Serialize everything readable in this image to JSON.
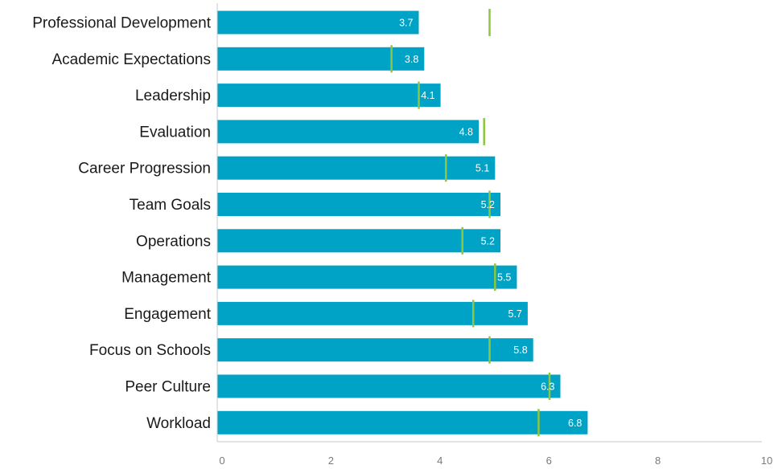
{
  "colors": {
    "bar": "#00a3c6",
    "benchmark": "#8dc63f",
    "axis": "#c9c9c9",
    "label_text": "#1a1a1a",
    "tick_text": "#7a7a7a",
    "value_text": "#ffffff"
  },
  "chart_data": {
    "type": "bar",
    "orientation": "horizontal",
    "title": "",
    "xlabel": "",
    "ylabel": "",
    "xlim": [
      0,
      10
    ],
    "x_ticks": [
      0,
      2,
      4,
      6,
      8,
      10
    ],
    "grid": false,
    "categories": [
      "Professional Development",
      "Academic Expectations",
      "Leadership",
      "Evaluation",
      "Career Progression",
      "Team Goals",
      "Operations",
      "Management",
      "Engagement",
      "Focus on Schools",
      "Peer Culture",
      "Workload"
    ],
    "values": [
      3.7,
      3.8,
      4.1,
      4.8,
      5.1,
      5.2,
      5.2,
      5.5,
      5.7,
      5.8,
      6.3,
      6.8
    ],
    "value_labels": [
      "3.7",
      "3.8",
      "4.1",
      "4.8",
      "5.1",
      "5.2",
      "5.2",
      "5.5",
      "5.7",
      "5.8",
      "6.3",
      "6.8"
    ],
    "benchmarks": [
      5.0,
      3.2,
      3.7,
      4.9,
      4.2,
      5.0,
      4.5,
      5.1,
      4.7,
      5.0,
      6.1,
      5.9
    ]
  }
}
